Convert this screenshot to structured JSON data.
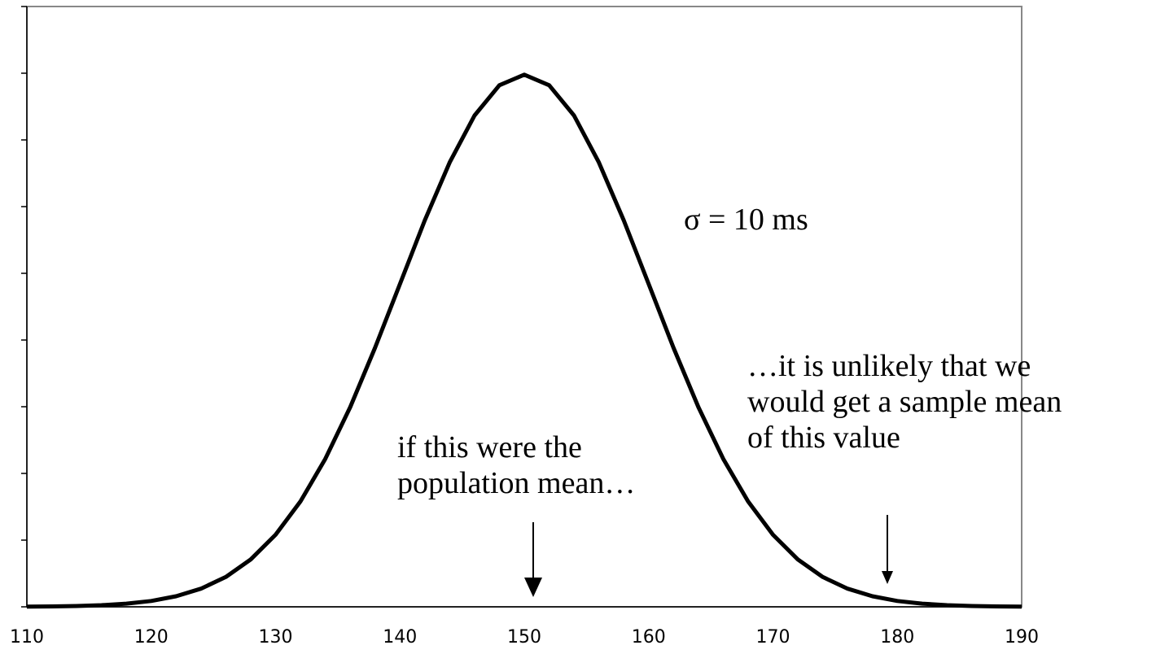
{
  "chart_data": {
    "type": "line",
    "x": [
      110,
      112,
      114,
      116,
      118,
      120,
      122,
      124,
      126,
      128,
      130,
      132,
      134,
      136,
      138,
      140,
      142,
      144,
      146,
      148,
      150,
      152,
      154,
      156,
      158,
      160,
      162,
      164,
      166,
      168,
      170,
      172,
      174,
      176,
      178,
      180,
      182,
      184,
      186,
      188,
      190
    ],
    "values": [
      1e-05,
      3e-05,
      6e-05,
      0.00012,
      0.00024,
      0.00044,
      0.00079,
      0.00136,
      0.00224,
      0.00355,
      0.0054,
      0.0079,
      0.01109,
      0.01497,
      0.01942,
      0.0242,
      0.02897,
      0.03332,
      0.03683,
      0.0391,
      0.03989,
      0.0391,
      0.03683,
      0.03332,
      0.02897,
      0.0242,
      0.01942,
      0.01497,
      0.01109,
      0.0079,
      0.0054,
      0.00355,
      0.00224,
      0.00136,
      0.00079,
      0.00044,
      0.00024,
      0.00012,
      6e-05,
      3e-05,
      1e-05
    ],
    "color": "#000000",
    "xlim": [
      110,
      190
    ],
    "xticks": [
      110,
      120,
      130,
      140,
      150,
      160,
      170,
      180,
      190
    ],
    "ylim": [
      0,
      0.045
    ],
    "yticks": [
      0,
      0.005,
      0.01,
      0.015,
      0.02,
      0.025,
      0.03,
      0.035,
      0.04,
      0.045
    ],
    "annotations": [
      [
        "σ = 10 ms"
      ],
      [
        "if this were the",
        "population mean…"
      ],
      [
        "…it is unlikely that we",
        "would get a sample mean",
        "of this value"
      ]
    ]
  }
}
